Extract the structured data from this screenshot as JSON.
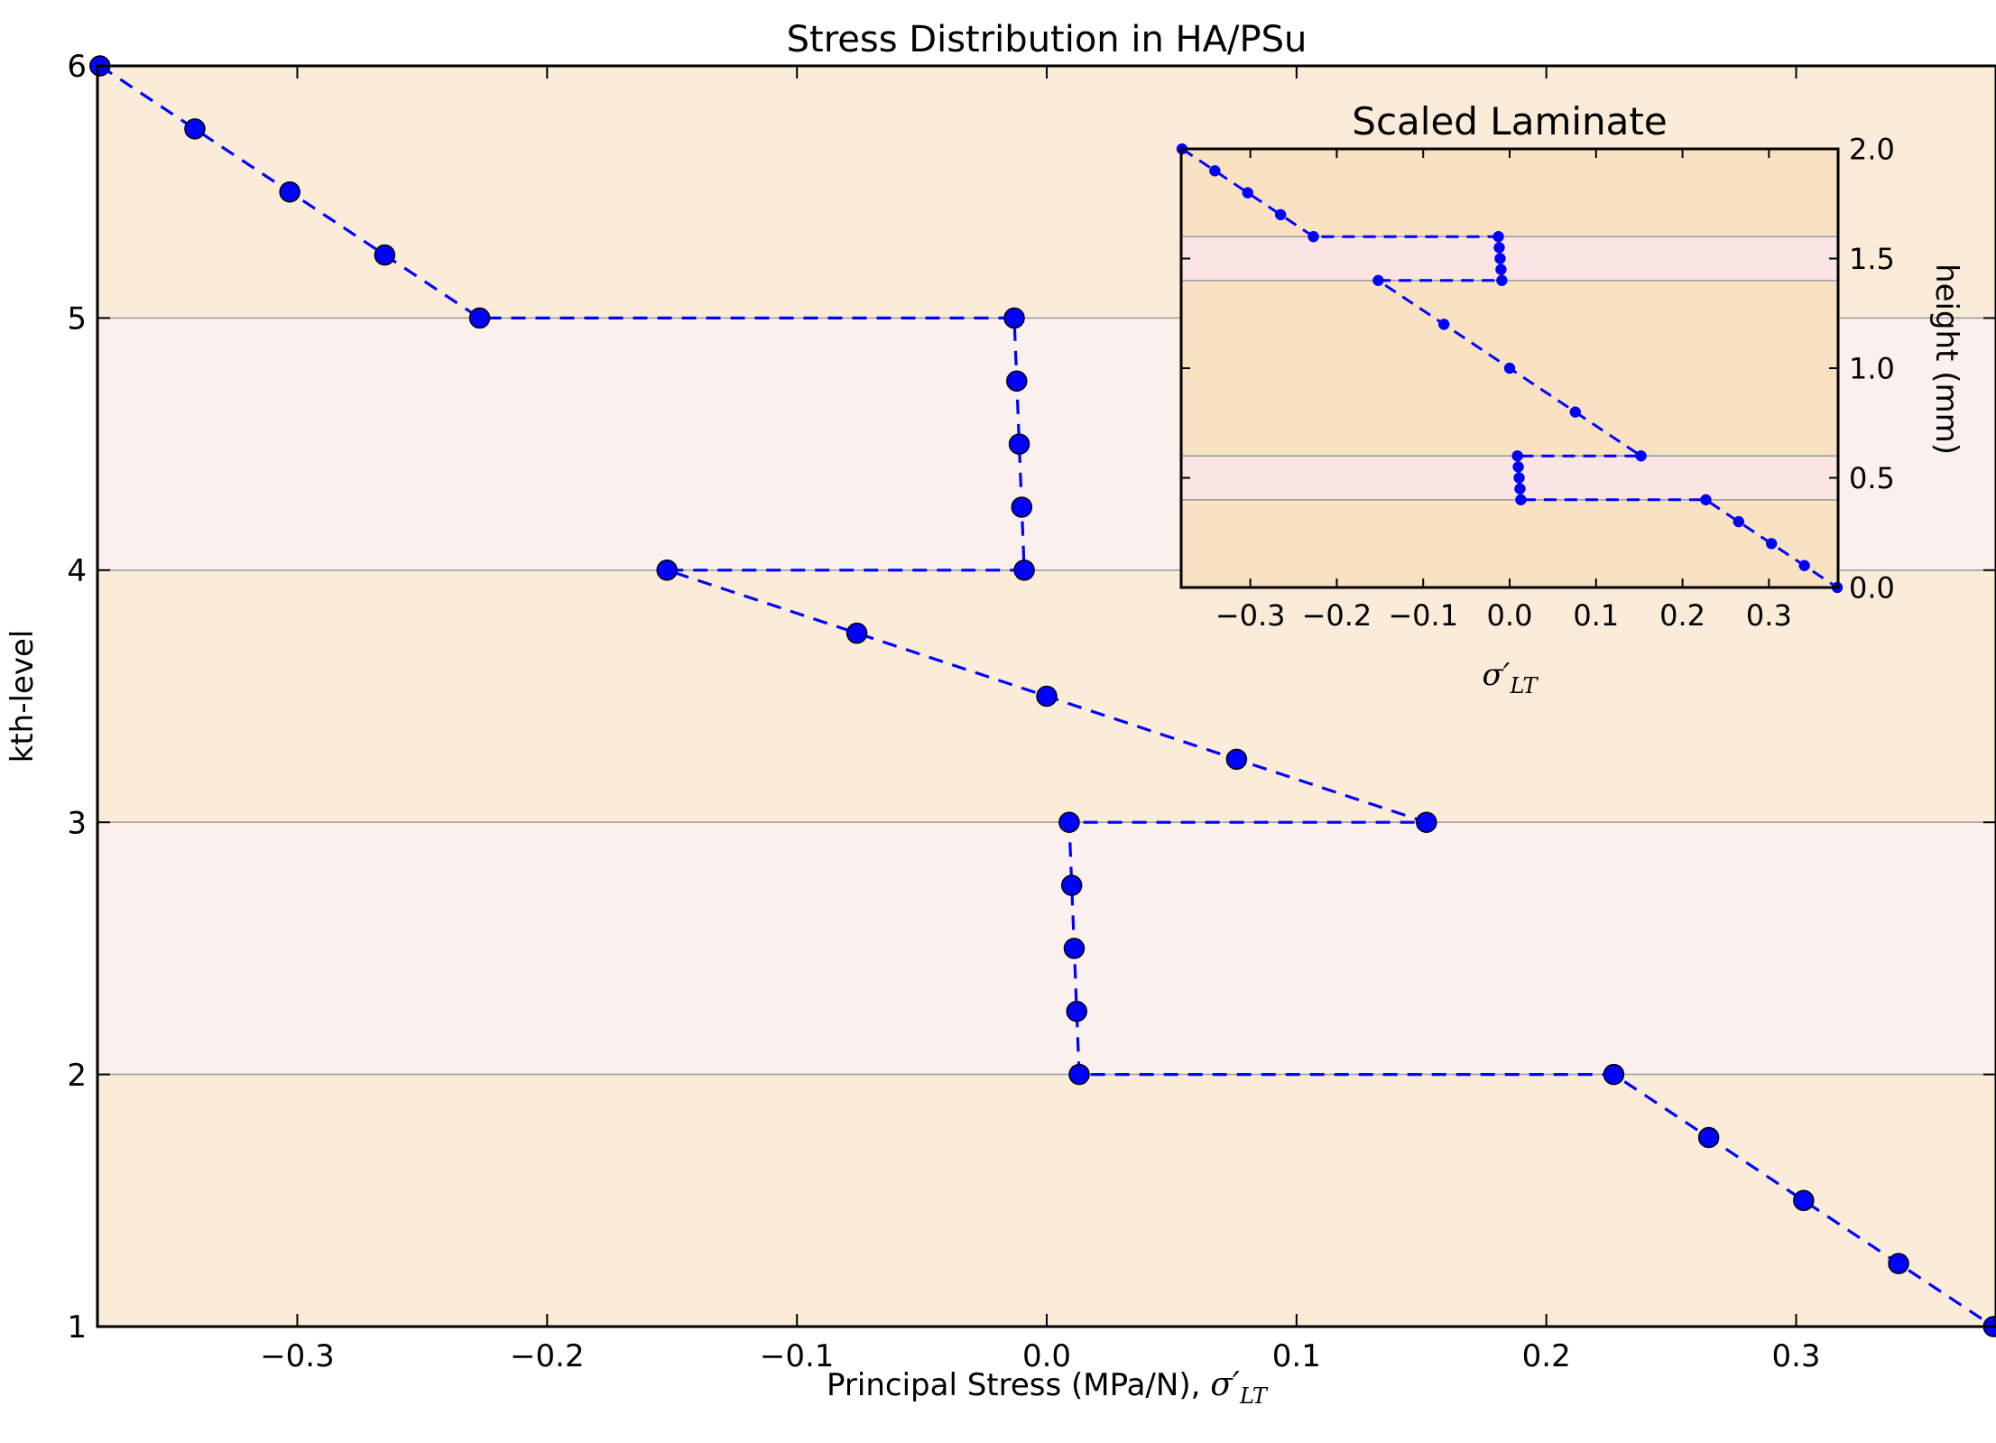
{
  "colors": {
    "background": "#faecd8",
    "shear_band": "#faf0ee",
    "inset_background": "#f8e2c1",
    "inset_shear_band": "#fae5e2",
    "series": "#0000ff",
    "gridline": "#a0a0a0"
  },
  "chart_data": [
    {
      "type": "line",
      "title": "Stress Distribution in HA/PSu",
      "xlabel": "Principal Stress (MPa/N), σ′LT",
      "xlabel_text": "Principal Stress (MPa/N), ",
      "xlabel_math": "σ′",
      "xlabel_sub": "LT",
      "ylabel": "kth-level",
      "xlim": [
        -0.38,
        0.38
      ],
      "ylim": [
        1,
        6
      ],
      "xticks": [
        -0.3,
        -0.2,
        -0.1,
        0.0,
        0.1,
        0.2,
        0.3
      ],
      "xtick_labels": [
        "−0.3",
        "−0.2",
        "−0.1",
        "0.0",
        "0.1",
        "0.2",
        "0.3"
      ],
      "yticks": [
        1,
        2,
        3,
        4,
        5,
        6
      ],
      "ytick_labels": [
        "1",
        "2",
        "3",
        "4",
        "5",
        "6"
      ],
      "hlines": [
        2,
        3,
        4,
        5
      ],
      "shaded_bands": [
        [
          2,
          3
        ],
        [
          4,
          5
        ]
      ],
      "marker": "circle",
      "linestyle": "dashed",
      "series": [
        {
          "x": [
            -0.379,
            -0.341,
            -0.303,
            -0.265,
            -0.227,
            -0.013,
            -0.012,
            -0.011,
            -0.01,
            -0.009,
            -0.152,
            -0.076,
            0.0,
            0.076,
            0.152,
            0.009,
            0.01,
            0.011,
            0.012,
            0.013,
            0.227,
            0.265,
            0.303,
            0.341,
            0.379
          ],
          "y": [
            6.0,
            5.75,
            5.5,
            5.25,
            5.0,
            5.0,
            4.75,
            4.5,
            4.25,
            4.0,
            4.0,
            3.75,
            3.5,
            3.25,
            3.0,
            3.0,
            2.75,
            2.5,
            2.25,
            2.0,
            2.0,
            1.75,
            1.5,
            1.25,
            1.0
          ]
        }
      ]
    },
    {
      "type": "line",
      "title": "Scaled Laminate",
      "xlabel": "σ′LT",
      "xlabel_math": "σ′",
      "xlabel_sub": "LT",
      "ylabel": "height (mm)",
      "xlim": [
        -0.38,
        0.38
      ],
      "ylim": [
        0.0,
        2.0
      ],
      "xticks": [
        -0.3,
        -0.2,
        -0.1,
        0.0,
        0.1,
        0.2,
        0.3
      ],
      "xtick_labels": [
        "−0.3",
        "−0.2",
        "−0.1",
        "0.0",
        "0.1",
        "0.2",
        "0.3"
      ],
      "yticks": [
        0.0,
        0.5,
        1.0,
        1.5,
        2.0
      ],
      "ytick_labels": [
        "0.0",
        "0.5",
        "1.0",
        "1.5",
        "2.0"
      ],
      "hlines": [
        0.4,
        0.6,
        1.4,
        1.6
      ],
      "shaded_bands": [
        [
          0.4,
          0.6
        ],
        [
          1.4,
          1.6
        ]
      ],
      "marker": "circle",
      "linestyle": "dashed",
      "series": [
        {
          "x": [
            -0.379,
            -0.341,
            -0.303,
            -0.265,
            -0.227,
            -0.013,
            -0.012,
            -0.011,
            -0.01,
            -0.009,
            -0.152,
            -0.076,
            0.0,
            0.076,
            0.152,
            0.009,
            0.01,
            0.011,
            0.012,
            0.013,
            0.227,
            0.265,
            0.303,
            0.341,
            0.379
          ],
          "y": [
            2.0,
            1.9,
            1.8,
            1.7,
            1.6,
            1.6,
            1.55,
            1.5,
            1.45,
            1.4,
            1.4,
            1.2,
            1.0,
            0.8,
            0.6,
            0.6,
            0.55,
            0.5,
            0.45,
            0.4,
            0.4,
            0.3,
            0.2,
            0.1,
            0.0
          ]
        }
      ]
    }
  ]
}
